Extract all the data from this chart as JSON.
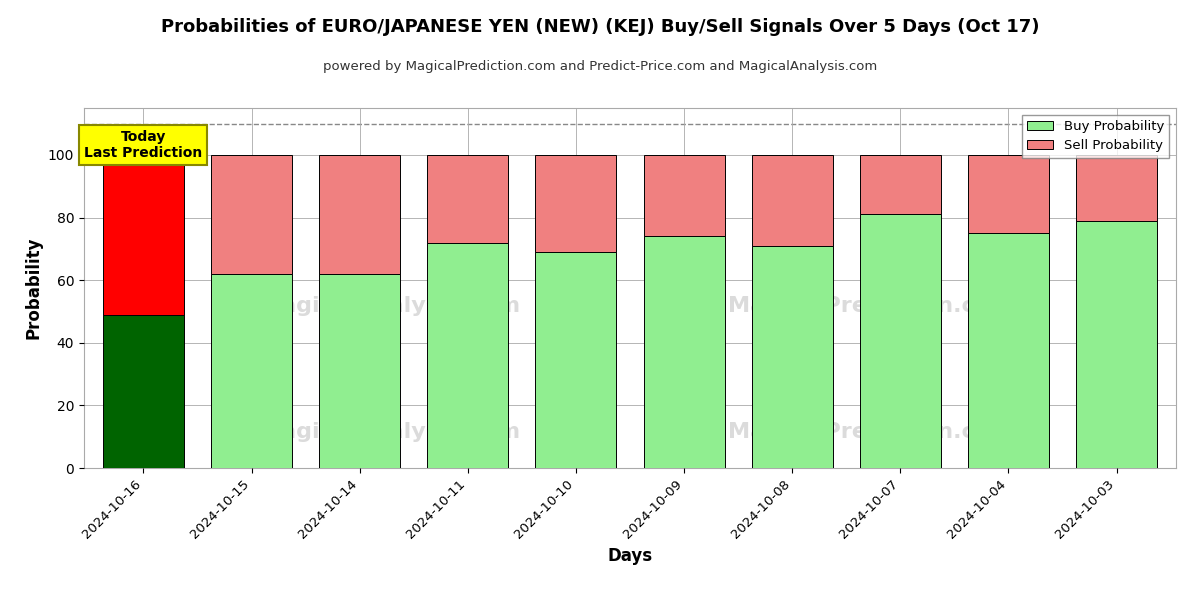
{
  "title": "Probabilities of EURO/JAPANESE YEN (NEW) (KEJ) Buy/Sell Signals Over 5 Days (Oct 17)",
  "subtitle": "powered by MagicalPrediction.com and Predict-Price.com and MagicalAnalysis.com",
  "xlabel": "Days",
  "ylabel": "Probability",
  "days": [
    "2024-10-16",
    "2024-10-15",
    "2024-10-14",
    "2024-10-11",
    "2024-10-10",
    "2024-10-09",
    "2024-10-08",
    "2024-10-07",
    "2024-10-04",
    "2024-10-03"
  ],
  "buy_values": [
    49,
    62,
    62,
    72,
    69,
    74,
    71,
    81,
    75,
    79
  ],
  "sell_values": [
    51,
    38,
    38,
    28,
    31,
    26,
    29,
    19,
    25,
    21
  ],
  "buy_colors": [
    "#006400",
    "#90EE90",
    "#90EE90",
    "#90EE90",
    "#90EE90",
    "#90EE90",
    "#90EE90",
    "#90EE90",
    "#90EE90",
    "#90EE90"
  ],
  "sell_colors": [
    "#FF0000",
    "#F08080",
    "#F08080",
    "#F08080",
    "#F08080",
    "#F08080",
    "#F08080",
    "#F08080",
    "#F08080",
    "#F08080"
  ],
  "buy_legend_color": "#90EE90",
  "sell_legend_color": "#F08080",
  "dashed_line_y": 110,
  "ylim": [
    0,
    115
  ],
  "yticks": [
    0,
    20,
    40,
    60,
    80,
    100
  ],
  "annotation_text": "Today\nLast Prediction",
  "annotation_bg": "#FFFF00",
  "watermark_left": "MagicalAnalysis.com",
  "watermark_right": "MagicalPrediction.com",
  "bg_color": "#FFFFFF",
  "grid_color": "#AAAAAA",
  "bar_edge_color": "#000000",
  "bar_width": 0.75
}
